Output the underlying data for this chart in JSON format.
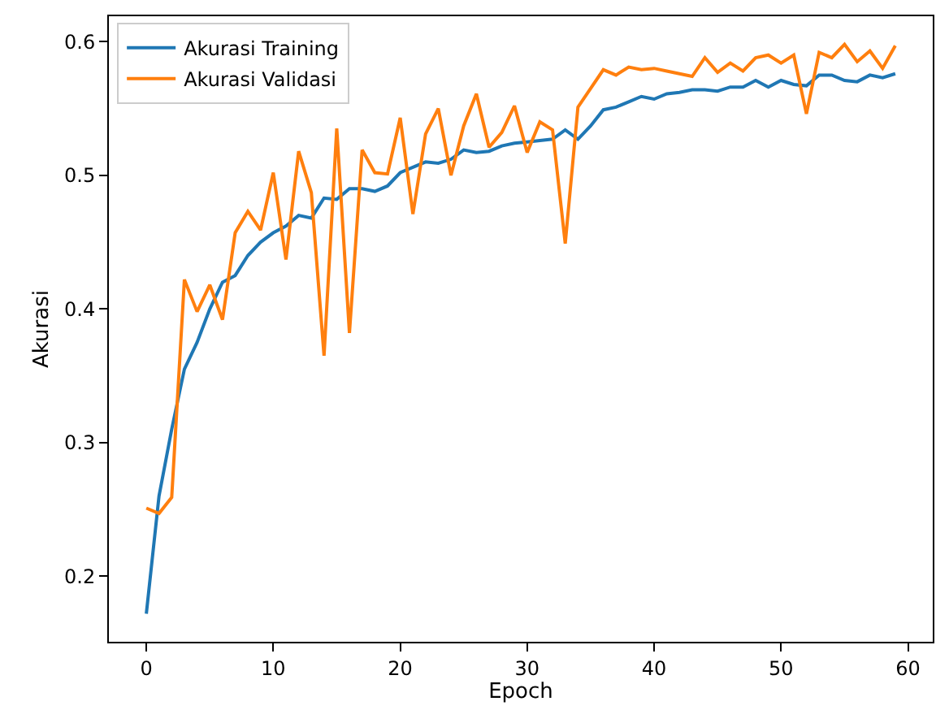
{
  "chart_data": {
    "type": "line",
    "xlabel": "Epoch",
    "ylabel": "Akurasi",
    "x": [
      0,
      1,
      2,
      3,
      4,
      5,
      6,
      7,
      8,
      9,
      10,
      11,
      12,
      13,
      14,
      15,
      16,
      17,
      18,
      19,
      20,
      21,
      22,
      23,
      24,
      25,
      26,
      27,
      28,
      29,
      30,
      31,
      32,
      33,
      34,
      35,
      36,
      37,
      38,
      39,
      40,
      41,
      42,
      43,
      44,
      45,
      46,
      47,
      48,
      49,
      50,
      51,
      52,
      53,
      54,
      55,
      56,
      57,
      58,
      59
    ],
    "series": [
      {
        "name": "Akurasi Training",
        "color": "#1f77b4",
        "values": [
          0.172,
          0.26,
          0.31,
          0.355,
          0.375,
          0.4,
          0.42,
          0.425,
          0.44,
          0.45,
          0.457,
          0.462,
          0.47,
          0.468,
          0.483,
          0.482,
          0.49,
          0.49,
          0.488,
          0.492,
          0.502,
          0.506,
          0.51,
          0.509,
          0.512,
          0.519,
          0.517,
          0.518,
          0.522,
          0.524,
          0.525,
          0.526,
          0.527,
          0.534,
          0.527,
          0.537,
          0.549,
          0.551,
          0.555,
          0.559,
          0.557,
          0.561,
          0.562,
          0.564,
          0.564,
          0.563,
          0.566,
          0.566,
          0.571,
          0.566,
          0.571,
          0.568,
          0.567,
          0.575,
          0.575,
          0.571,
          0.57,
          0.575,
          0.573,
          0.576
        ]
      },
      {
        "name": "Akurasi Validasi",
        "color": "#ff7f0e",
        "values": [
          0.251,
          0.247,
          0.259,
          0.422,
          0.398,
          0.418,
          0.392,
          0.457,
          0.473,
          0.459,
          0.502,
          0.437,
          0.518,
          0.487,
          0.365,
          0.535,
          0.382,
          0.519,
          0.502,
          0.501,
          0.543,
          0.471,
          0.531,
          0.55,
          0.5,
          0.537,
          0.561,
          0.521,
          0.532,
          0.552,
          0.517,
          0.54,
          0.534,
          0.449,
          0.551,
          0.565,
          0.579,
          0.575,
          0.581,
          0.579,
          0.58,
          0.578,
          0.576,
          0.574,
          0.588,
          0.577,
          0.584,
          0.578,
          0.588,
          0.59,
          0.584,
          0.59,
          0.546,
          0.592,
          0.588,
          0.598,
          0.585,
          0.593,
          0.58,
          0.597
        ]
      }
    ],
    "xlim": [
      -2.95,
      61.95
    ],
    "ylim": [
      0.151,
      0.619
    ],
    "xticks": [
      0,
      10,
      20,
      30,
      40,
      50,
      60
    ],
    "yticks": [
      0.2,
      0.3,
      0.4,
      0.5,
      0.6
    ],
    "legend": "top left"
  }
}
